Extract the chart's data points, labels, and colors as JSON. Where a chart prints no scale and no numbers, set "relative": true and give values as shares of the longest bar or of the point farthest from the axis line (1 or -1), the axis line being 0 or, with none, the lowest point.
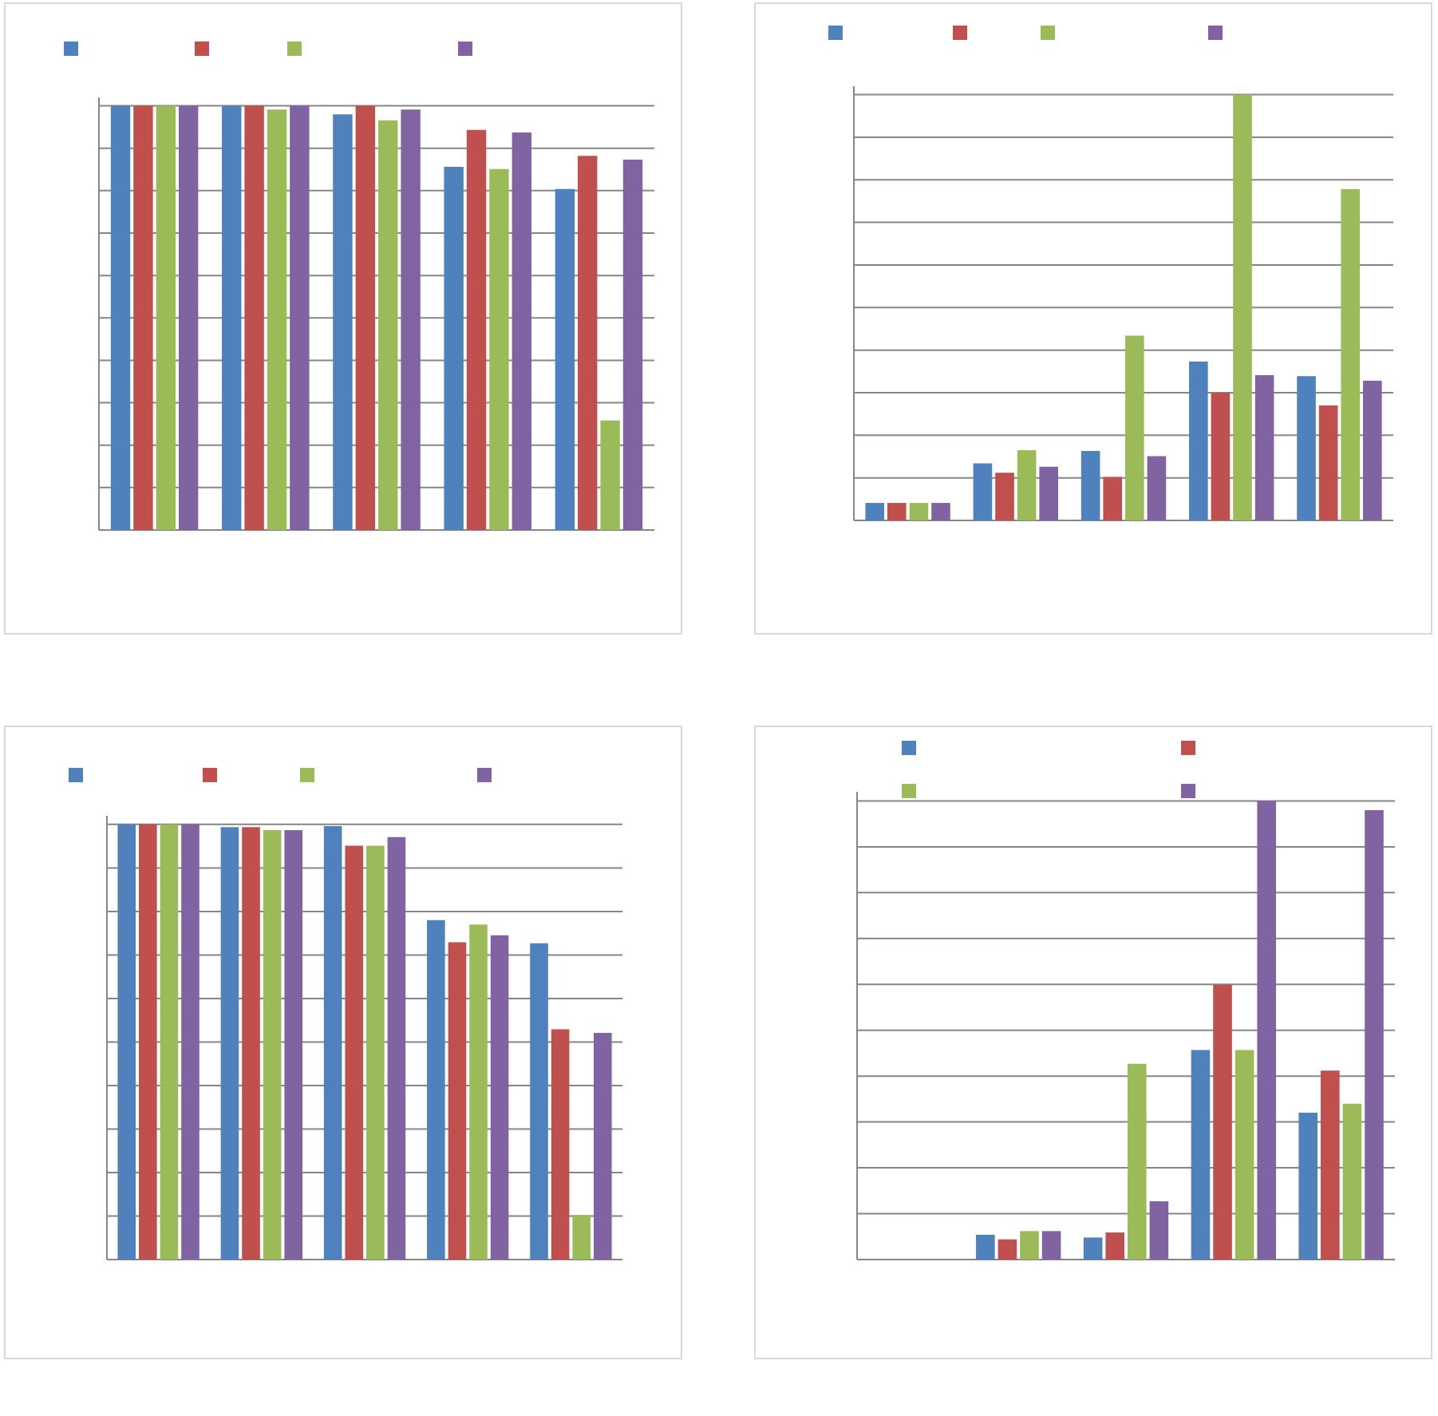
{
  "chart_data": [
    {
      "type": "bar",
      "categories": [
        null,
        null,
        null,
        null,
        null
      ],
      "relative": true,
      "grid": "y",
      "series": [
        {
          "color": "#4f81bd",
          "values": [
            1,
            1,
            0.98,
            0.856,
            0.804
          ]
        },
        {
          "color": "#c0504d",
          "values": [
            1,
            1,
            1,
            0.943,
            0.882
          ]
        },
        {
          "color": "#9bbb59",
          "values": [
            1,
            0.991,
            0.966,
            0.851,
            0.258
          ]
        },
        {
          "color": "#8064a2",
          "values": [
            1,
            1,
            0.991,
            0.937,
            0.873
          ]
        }
      ]
    },
    {
      "type": "bar",
      "categories": [
        null,
        null,
        null,
        null,
        null
      ],
      "relative": true,
      "grid": "y",
      "series": [
        {
          "color": "#4f81bd",
          "values": [
            0.041,
            0.134,
            0.163,
            0.373,
            0.339
          ]
        },
        {
          "color": "#c0504d",
          "values": [
            0.041,
            0.112,
            0.102,
            0.3,
            0.27
          ]
        },
        {
          "color": "#9bbb59",
          "values": [
            0.041,
            0.165,
            0.434,
            1,
            0.778
          ]
        },
        {
          "color": "#8064a2",
          "values": [
            0.041,
            0.126,
            0.151,
            0.341,
            0.328
          ]
        }
      ]
    },
    {
      "type": "bar",
      "categories": [
        null,
        null,
        null,
        null,
        null
      ],
      "relative": true,
      "grid": "y",
      "series": [
        {
          "color": "#4f81bd",
          "values": [
            1,
            0.994,
            0.996,
            0.78,
            0.727
          ]
        },
        {
          "color": "#c0504d",
          "values": [
            1,
            0.994,
            0.951,
            0.729,
            0.529
          ]
        },
        {
          "color": "#9bbb59",
          "values": [
            1,
            0.987,
            0.951,
            0.77,
            0.102
          ]
        },
        {
          "color": "#8064a2",
          "values": [
            1,
            0.987,
            0.971,
            0.745,
            0.521
          ]
        }
      ]
    },
    {
      "type": "bar",
      "categories": [
        null,
        null,
        null,
        null,
        null
      ],
      "relative": true,
      "grid": "y",
      "series": [
        {
          "color": "#4f81bd",
          "values": [
            0,
            0.054,
            0.048,
            0.457,
            0.32
          ]
        },
        {
          "color": "#c0504d",
          "values": [
            0,
            0.044,
            0.059,
            0.599,
            0.412
          ]
        },
        {
          "color": "#9bbb59",
          "values": [
            0,
            0.062,
            0.427,
            0.457,
            0.34
          ]
        },
        {
          "color": "#8064a2",
          "values": [
            0,
            0.062,
            0.127,
            1,
            0.98
          ]
        }
      ]
    }
  ]
}
